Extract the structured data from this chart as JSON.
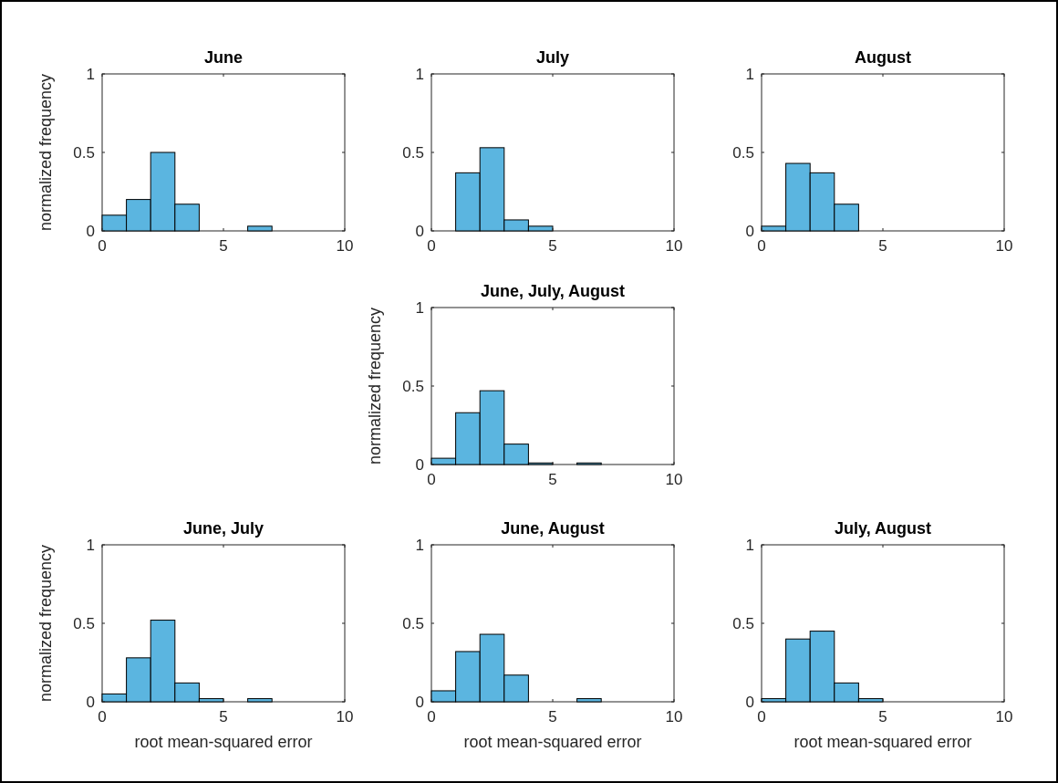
{
  "chart_data": [
    {
      "type": "histogram",
      "title": "June",
      "ylabel": "normalized frequency",
      "bins": [
        0,
        1,
        2,
        3,
        4,
        5,
        6,
        7,
        8,
        9,
        10
      ],
      "values": [
        0.1,
        0.2,
        0.5,
        0.17,
        0,
        0,
        0.03,
        0,
        0,
        0
      ],
      "color": "#5bb5e0",
      "xlim": [
        0,
        10
      ],
      "xticks": [
        0,
        5,
        10
      ],
      "ylim": [
        0,
        1
      ],
      "yticks": [
        0,
        0.5,
        1
      ]
    },
    {
      "type": "histogram",
      "title": "July",
      "bins": [
        0,
        1,
        2,
        3,
        4,
        5,
        6,
        7,
        8,
        9,
        10
      ],
      "values": [
        0,
        0.37,
        0.53,
        0.07,
        0.03,
        0,
        0,
        0,
        0,
        0
      ],
      "color": "#5bb5e0",
      "xlim": [
        0,
        10
      ],
      "xticks": [
        0,
        5,
        10
      ],
      "ylim": [
        0,
        1
      ],
      "yticks": [
        0,
        0.5,
        1
      ]
    },
    {
      "type": "histogram",
      "title": "August",
      "bins": [
        0,
        1,
        2,
        3,
        4,
        5,
        6,
        7,
        8,
        9,
        10
      ],
      "values": [
        0.03,
        0.43,
        0.37,
        0.17,
        0,
        0,
        0,
        0,
        0,
        0
      ],
      "color": "#5bb5e0",
      "xlim": [
        0,
        10
      ],
      "xticks": [
        0,
        5,
        10
      ],
      "ylim": [
        0,
        1
      ],
      "yticks": [
        0,
        0.5,
        1
      ]
    },
    {
      "type": "histogram",
      "title": "June, July, August",
      "ylabel": "normalized frequency",
      "bins": [
        0,
        1,
        2,
        3,
        4,
        5,
        6,
        7,
        8,
        9,
        10
      ],
      "values": [
        0.04,
        0.33,
        0.47,
        0.13,
        0.01,
        0,
        0.01,
        0,
        0,
        0
      ],
      "color": "#5bb5e0",
      "xlim": [
        0,
        10
      ],
      "xticks": [
        0,
        5,
        10
      ],
      "ylim": [
        0,
        1
      ],
      "yticks": [
        0,
        0.5,
        1
      ]
    },
    {
      "type": "histogram",
      "title": "June, July",
      "xlabel": "root mean-squared error",
      "ylabel": "normalized frequency",
      "bins": [
        0,
        1,
        2,
        3,
        4,
        5,
        6,
        7,
        8,
        9,
        10
      ],
      "values": [
        0.05,
        0.28,
        0.52,
        0.12,
        0.02,
        0,
        0.02,
        0,
        0,
        0
      ],
      "color": "#5bb5e0",
      "xlim": [
        0,
        10
      ],
      "xticks": [
        0,
        5,
        10
      ],
      "ylim": [
        0,
        1
      ],
      "yticks": [
        0,
        0.5,
        1
      ]
    },
    {
      "type": "histogram",
      "title": "June, August",
      "xlabel": "root mean-squared error",
      "bins": [
        0,
        1,
        2,
        3,
        4,
        5,
        6,
        7,
        8,
        9,
        10
      ],
      "values": [
        0.07,
        0.32,
        0.43,
        0.17,
        0,
        0,
        0.02,
        0,
        0,
        0
      ],
      "color": "#5bb5e0",
      "xlim": [
        0,
        10
      ],
      "xticks": [
        0,
        5,
        10
      ],
      "ylim": [
        0,
        1
      ],
      "yticks": [
        0,
        0.5,
        1
      ]
    },
    {
      "type": "histogram",
      "title": "July, August",
      "xlabel": "root mean-squared error",
      "bins": [
        0,
        1,
        2,
        3,
        4,
        5,
        6,
        7,
        8,
        9,
        10
      ],
      "values": [
        0.02,
        0.4,
        0.45,
        0.12,
        0.02,
        0,
        0,
        0,
        0,
        0
      ],
      "color": "#5bb5e0",
      "xlim": [
        0,
        10
      ],
      "xticks": [
        0,
        5,
        10
      ],
      "ylim": [
        0,
        1
      ],
      "yticks": [
        0,
        0.5,
        1
      ]
    }
  ]
}
